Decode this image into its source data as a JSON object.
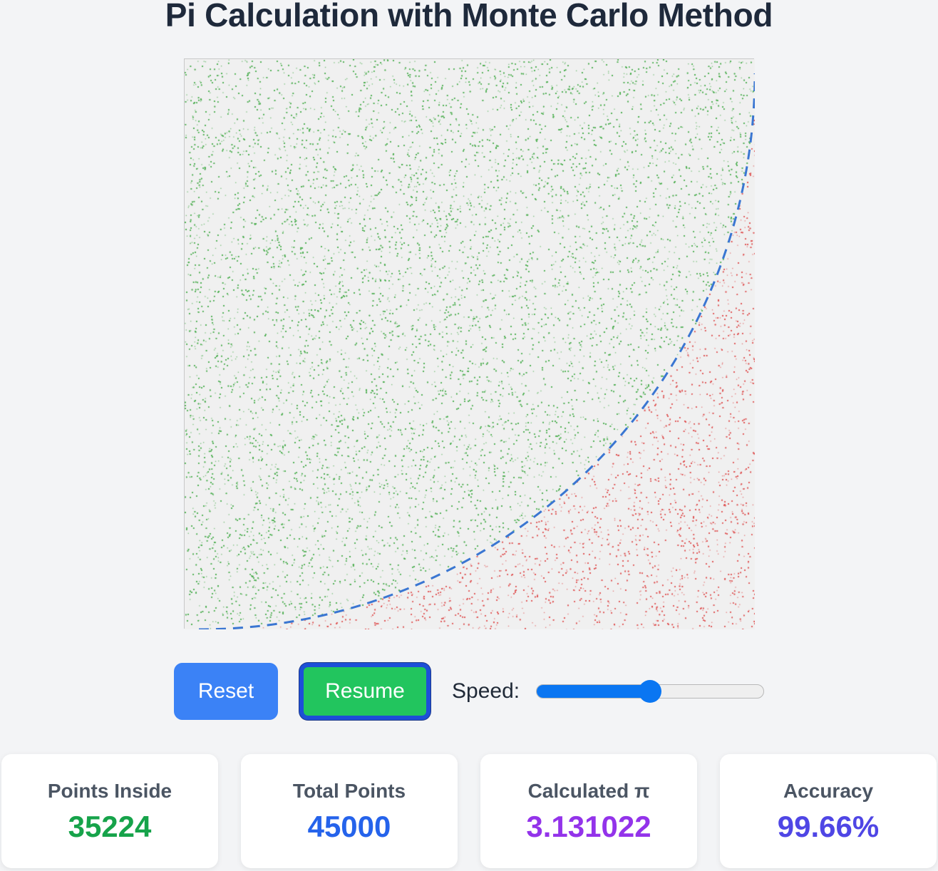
{
  "title": "Pi Calculation with Monte Carlo Method",
  "controls": {
    "reset_label": "Reset",
    "resume_label": "Resume",
    "speed_label": "Speed:",
    "speed_fraction": 0.5
  },
  "stats": [
    {
      "label": "Points Inside",
      "value": "35224",
      "color": "#16a34a"
    },
    {
      "label": "Total Points",
      "value": "45000",
      "color": "#2563eb"
    },
    {
      "label": "Calculated π",
      "value": "3.131022",
      "color": "#9333ea"
    },
    {
      "label": "Accuracy",
      "value": "99.66%",
      "color": "#4f46e5"
    }
  ],
  "simulation": {
    "points_inside": 35224,
    "total_points": 45000,
    "inside_color": "#4caf50",
    "outside_color": "#e05252",
    "boundary_color": "#3a76d2",
    "background_color": "#f0f0f0"
  }
}
